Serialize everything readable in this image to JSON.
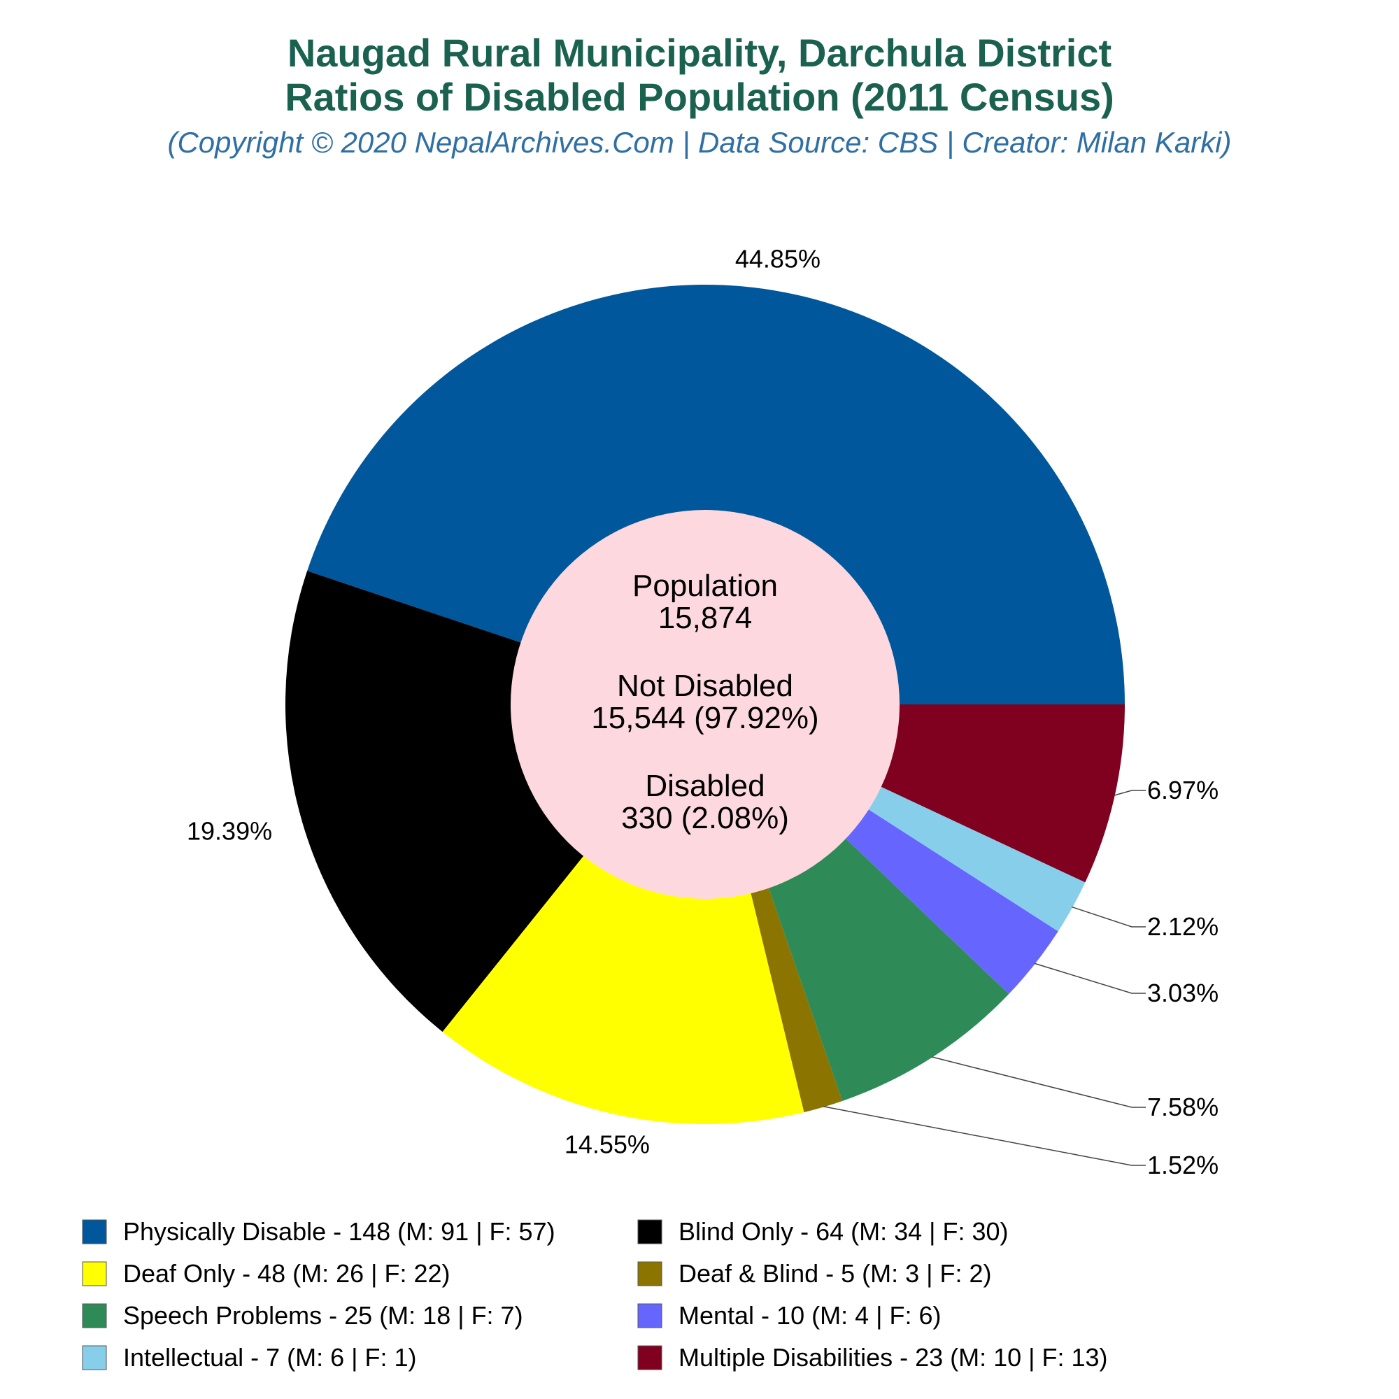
{
  "chart_data": {
    "type": "pie",
    "title_line1": "Naugad Rural Municipality, Darchula District",
    "title_line2": "Ratios of Disabled Population (2011 Census)",
    "subtitle": "(Copyright © 2020 NepalArchives.Com | Data Source: CBS | Creator: Milan Karki)",
    "center": {
      "population_label": "Population",
      "population_value": "15,874",
      "not_disabled_label": "Not Disabled",
      "not_disabled_value": "15,544 (97.92%)",
      "disabled_label": "Disabled",
      "disabled_value": "330 (2.08%)"
    },
    "slices": [
      {
        "name": "Physically Disable",
        "value": 148,
        "pct_label": "44.85%",
        "color": "#01579b",
        "legend": "Physically Disable - 148 (M: 91 | F: 57)"
      },
      {
        "name": "Blind Only",
        "value": 64,
        "pct_label": "19.39%",
        "color": "#000000",
        "legend": "Blind Only - 64 (M: 34 | F: 30)"
      },
      {
        "name": "Deaf Only",
        "value": 48,
        "pct_label": "14.55%",
        "color": "#ffff00",
        "legend": "Deaf Only - 48 (M: 26 | F: 22)"
      },
      {
        "name": "Deaf & Blind",
        "value": 5,
        "pct_label": "1.52%",
        "color": "#8b7500",
        "legend": "Deaf & Blind - 5 (M: 3 | F: 2)"
      },
      {
        "name": "Speech Problems",
        "value": 25,
        "pct_label": "7.58%",
        "color": "#2e8b57",
        "legend": "Speech Problems - 25 (M: 18 | F: 7)"
      },
      {
        "name": "Mental",
        "value": 10,
        "pct_label": "3.03%",
        "color": "#6666ff",
        "legend": "Mental - 10 (M: 4 | F: 6)"
      },
      {
        "name": "Intellectual",
        "value": 7,
        "pct_label": "2.12%",
        "color": "#87ceeb",
        "legend": "Intellectual - 7 (M: 6 | F: 1)"
      },
      {
        "name": "Multiple Disabilities",
        "value": 23,
        "pct_label": "6.97%",
        "color": "#800020",
        "legend": "Multiple Disabilities - 23 (M: 10 | F: 13)"
      }
    ],
    "center_color": "#fdd9df",
    "legend_placement": "bottom"
  }
}
